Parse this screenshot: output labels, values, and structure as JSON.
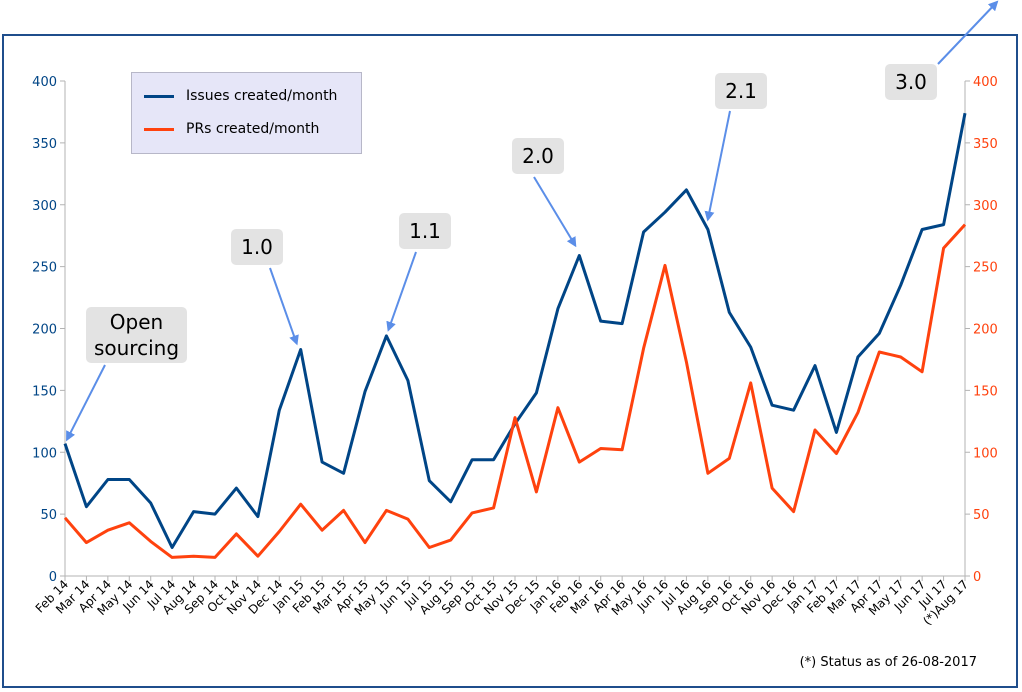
{
  "chart_data": {
    "type": "line",
    "categories": [
      "Feb 14",
      "Mar 14",
      "Apr 14",
      "May 14",
      "Jun 14",
      "Jul 14",
      "Aug 14",
      "Sep 14",
      "Oct 14",
      "Nov 14",
      "Dec 14",
      "Jan 15",
      "Feb 15",
      "Mar 15",
      "Apr 15",
      "May 15",
      "Jun 15",
      "Jul 15",
      "Aug 15",
      "Sep 15",
      "Oct 15",
      "Nov 15",
      "Dec 15",
      "Jan 16",
      "Feb 16",
      "Mar 16",
      "Apr 16",
      "May 16",
      "Jun 16",
      "Jul 16",
      "Aug 16",
      "Sep 16",
      "Oct 16",
      "Nov 16",
      "Dec 16",
      "Jan 17",
      "Feb 17",
      "Mar 17",
      "Apr 17",
      "May 17",
      "Jun 17",
      "Jul 17",
      "(*)Aug 17"
    ],
    "series": [
      {
        "name": "Issues created/month",
        "color": "#004586",
        "values": [
          107,
          56,
          78,
          78,
          59,
          23,
          52,
          50,
          71,
          48,
          134,
          183,
          92,
          83,
          149,
          194,
          158,
          77,
          60,
          94,
          94,
          123,
          148,
          216,
          259,
          206,
          204,
          278,
          294,
          312,
          280,
          213,
          185,
          138,
          134,
          170,
          116,
          177,
          196,
          235,
          280,
          284,
          374
        ]
      },
      {
        "name": "PRs created/month",
        "color": "#ff420e",
        "values": [
          47,
          27,
          37,
          43,
          28,
          15,
          16,
          15,
          34,
          16,
          36,
          58,
          37,
          53,
          27,
          53,
          46,
          23,
          29,
          51,
          55,
          128,
          68,
          136,
          92,
          103,
          102,
          184,
          251,
          173,
          83,
          95,
          156,
          71,
          52,
          118,
          99,
          132,
          181,
          177,
          165,
          265,
          284
        ]
      }
    ],
    "ylim": [
      0,
      400
    ],
    "y_ticks": [
      "0",
      "50",
      "100",
      "150",
      "200",
      "250",
      "300",
      "350",
      "400"
    ],
    "grid": false,
    "legend_position": "top-left",
    "y_axis_colors": {
      "left": "#004586",
      "right": "#ff420e"
    },
    "annotations": [
      {
        "text": "Open sourcing",
        "category": "Feb 14"
      },
      {
        "text": "1.0",
        "category": "Jan 15"
      },
      {
        "text": "1.1",
        "category": "May 15"
      },
      {
        "text": "2.0",
        "category": "Feb 16"
      },
      {
        "text": "2.1",
        "category": "Aug 16"
      },
      {
        "text": "3.0",
        "category": "(*)Aug 17"
      }
    ],
    "note": "(*) Status as of 26-08-2017"
  }
}
